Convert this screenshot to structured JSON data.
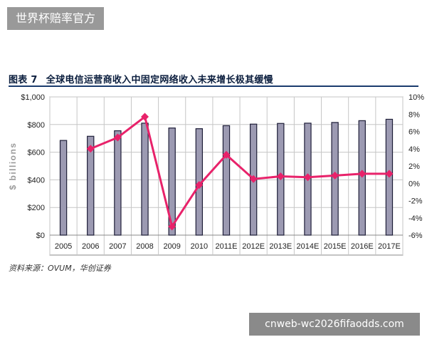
{
  "badge": {
    "text": "世界杯赔率官方"
  },
  "figure": {
    "number": "图表 7",
    "title": "全球电信运营商收入中固定网络收入未来增长极其缓慢",
    "source": "资料来源：OVUM，华创证券"
  },
  "watermark": {
    "text": "cnweb-wc2026fifaodds.com"
  },
  "colors": {
    "bar_fill": "#9c9ab2",
    "bar_edge": "#1e1e38",
    "line": "#e8226a",
    "grid": "#c6c6c6",
    "plot_border": "#888888"
  },
  "chart_data": {
    "type": "bar",
    "title": "全球电信运营商收入中固定网络收入未来增长极其缓慢",
    "ylabel": "$ billions",
    "categories": [
      "2005",
      "2006",
      "2007",
      "2008",
      "2009",
      "2010",
      "2011E",
      "2012E",
      "2013E",
      "2014E",
      "2015E",
      "2016E",
      "2017E"
    ],
    "ylim": [
      0,
      1000
    ],
    "y_ticks": [
      "$0",
      "$200",
      "$400",
      "$600",
      "$800",
      "$1,000"
    ],
    "y2lim": [
      -6,
      10
    ],
    "y2_ticks": [
      "-6%",
      "-4%",
      "-2%",
      "0%",
      "2%",
      "4%",
      "6%",
      "8%",
      "10%"
    ],
    "grid": true,
    "series": [
      {
        "type": "bar",
        "axis": "left",
        "values": [
          685,
          715,
          755,
          810,
          775,
          770,
          792,
          803,
          808,
          810,
          815,
          828,
          838
        ]
      },
      {
        "type": "line",
        "axis": "right",
        "values": [
          null,
          4.0,
          5.3,
          7.7,
          -5.0,
          -0.2,
          3.3,
          0.5,
          0.8,
          0.7,
          0.9,
          1.1,
          1.1
        ]
      }
    ]
  }
}
